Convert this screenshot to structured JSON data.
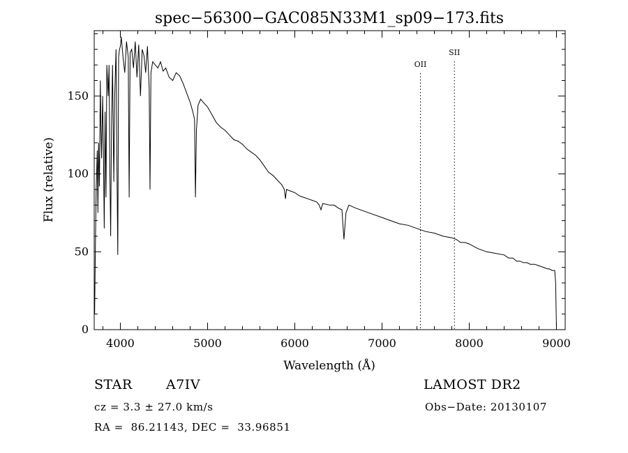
{
  "chart_data": {
    "type": "line",
    "title": "spec−56300−GAC085N33M1_sp09−173.fits",
    "xlabel": "Wavelength (Å)",
    "ylabel": "Flux (relative)",
    "xlim": [
      3700,
      9100
    ],
    "ylim": [
      0,
      192
    ],
    "x_ticks": [
      4000,
      5000,
      6000,
      7000,
      8000,
      9000
    ],
    "y_ticks": [
      0,
      50,
      100,
      150
    ],
    "grid": false,
    "line_color": "#000000",
    "series": [
      {
        "x": [
          3705,
          3712,
          3722,
          3735,
          3742,
          3750,
          3760,
          3770,
          3775,
          3785,
          3797,
          3805,
          3815,
          3825,
          3835,
          3845,
          3860,
          3870,
          3880,
          3889,
          3898,
          3910,
          3925,
          3935,
          3950,
          3960,
          3970,
          3980,
          3990,
          4000,
          4010,
          4030,
          4050,
          4070,
          4090,
          4101,
          4112,
          4130,
          4150,
          4170,
          4190,
          4210,
          4230,
          4250,
          4270,
          4290,
          4310,
          4330,
          4340,
          4350,
          4370,
          4400,
          4430,
          4460,
          4490,
          4520,
          4560,
          4600,
          4640,
          4680,
          4720,
          4760,
          4800,
          4830,
          4850,
          4861,
          4872,
          4890,
          4920,
          4950,
          5000,
          5050,
          5100,
          5150,
          5200,
          5250,
          5300,
          5350,
          5400,
          5450,
          5500,
          5550,
          5600,
          5650,
          5700,
          5750,
          5800,
          5850,
          5880,
          5893,
          5905,
          5950,
          6000,
          6050,
          6100,
          6150,
          6200,
          6250,
          6280,
          6300,
          6320,
          6400,
          6450,
          6500,
          6540,
          6563,
          6586,
          6620,
          6700,
          6800,
          6900,
          7000,
          7100,
          7200,
          7300,
          7400,
          7500,
          7600,
          7700,
          7800,
          7850,
          7900,
          7950,
          8000,
          8100,
          8200,
          8300,
          8400,
          8450,
          8500,
          8542,
          8580,
          8620,
          8662,
          8700,
          8750,
          8800,
          8850,
          8900,
          8920,
          8950,
          8980,
          8990,
          8995,
          9000
        ],
        "y": [
          10,
          45,
          90,
          115,
          75,
          120,
          92,
          160,
          135,
          110,
          150,
          120,
          65,
          140,
          85,
          170,
          150,
          170,
          100,
          60,
          130,
          170,
          95,
          150,
          180,
          110,
          48,
          175,
          180,
          182,
          188,
          175,
          165,
          185,
          175,
          85,
          178,
          180,
          168,
          185,
          162,
          183,
          150,
          180,
          176,
          165,
          182,
          155,
          90,
          165,
          172,
          170,
          168,
          172,
          166,
          168,
          162,
          160,
          165,
          163,
          158,
          152,
          146,
          140,
          135,
          85,
          128,
          144,
          148,
          146,
          143,
          138,
          133,
          130,
          128,
          125,
          122,
          121,
          119,
          116,
          114,
          112,
          109,
          105,
          101,
          99,
          96,
          93,
          90,
          84,
          90,
          89,
          88,
          86,
          85,
          84,
          83,
          82,
          80,
          77,
          81,
          80,
          80,
          78,
          77,
          58,
          75,
          80,
          78,
          76,
          74,
          72,
          70,
          68,
          67,
          65,
          63,
          62,
          60,
          59,
          58,
          56,
          56,
          55,
          52,
          50,
          49,
          48,
          46,
          46,
          44,
          44,
          43,
          43,
          42,
          42,
          41,
          40,
          39,
          39,
          38,
          38,
          30,
          15,
          0
        ]
      }
    ],
    "markers": [
      {
        "label": "OII",
        "x": 7440
      },
      {
        "label": "SII",
        "x": 7830
      }
    ]
  },
  "info": {
    "object_class": "STAR",
    "subclass": "A7IV",
    "survey": "LAMOST DR2",
    "cz": "cz = 3.3 ± 27.0 km/s",
    "obs_date": "Obs−Date: 20130107",
    "coords": "RA =  86.21143, DEC =  33.96851"
  }
}
